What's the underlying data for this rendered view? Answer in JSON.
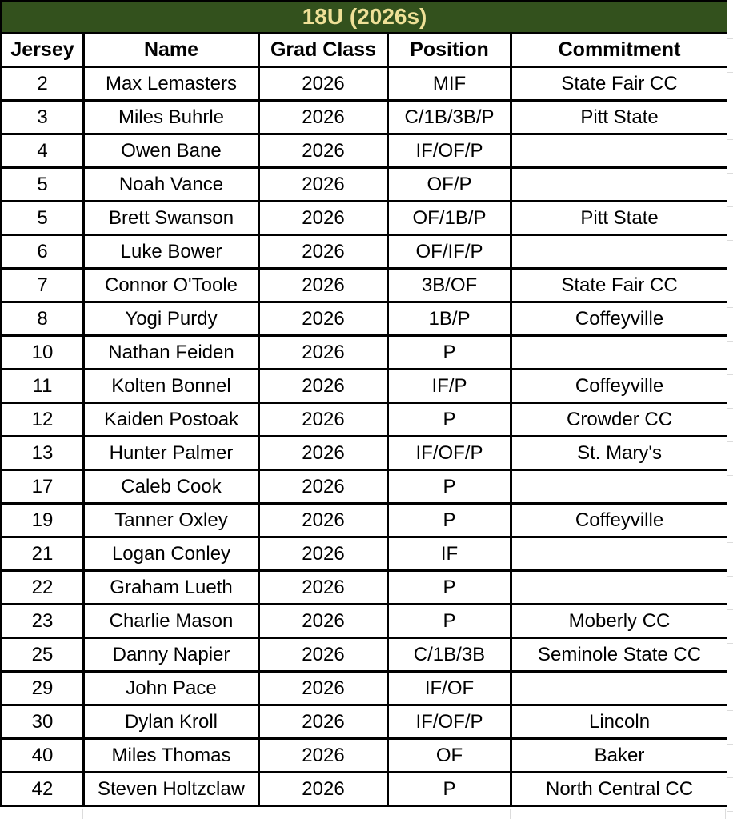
{
  "title": "18U (2026s)",
  "colors": {
    "header_bg": "#33511d",
    "header_text": "#efe097",
    "border": "#000000",
    "gridline": "#dcdcdc",
    "cell_bg": "#ffffff",
    "text": "#000000"
  },
  "table": {
    "columns": [
      "Jersey",
      "Name",
      "Grad Class",
      "Position",
      "Commitment"
    ],
    "rows": [
      {
        "jersey": "2",
        "name": "Max Lemasters",
        "grad_class": "2026",
        "position": "MIF",
        "commitment": "State Fair CC"
      },
      {
        "jersey": "3",
        "name": "Miles Buhrle",
        "grad_class": "2026",
        "position": "C/1B/3B/P",
        "commitment": "Pitt State"
      },
      {
        "jersey": "4",
        "name": "Owen Bane",
        "grad_class": "2026",
        "position": "IF/OF/P",
        "commitment": ""
      },
      {
        "jersey": "5",
        "name": "Noah Vance",
        "grad_class": "2026",
        "position": "OF/P",
        "commitment": ""
      },
      {
        "jersey": "5",
        "name": "Brett Swanson",
        "grad_class": "2026",
        "position": "OF/1B/P",
        "commitment": "Pitt State"
      },
      {
        "jersey": "6",
        "name": "Luke Bower",
        "grad_class": "2026",
        "position": "OF/IF/P",
        "commitment": ""
      },
      {
        "jersey": "7",
        "name": "Connor O'Toole",
        "grad_class": "2026",
        "position": "3B/OF",
        "commitment": "State Fair CC"
      },
      {
        "jersey": "8",
        "name": "Yogi Purdy",
        "grad_class": "2026",
        "position": "1B/P",
        "commitment": "Coffeyville"
      },
      {
        "jersey": "10",
        "name": "Nathan Feiden",
        "grad_class": "2026",
        "position": "P",
        "commitment": ""
      },
      {
        "jersey": "11",
        "name": "Kolten Bonnel",
        "grad_class": "2026",
        "position": "IF/P",
        "commitment": "Coffeyville"
      },
      {
        "jersey": "12",
        "name": "Kaiden Postoak",
        "grad_class": "2026",
        "position": "P",
        "commitment": "Crowder CC"
      },
      {
        "jersey": "13",
        "name": "Hunter Palmer",
        "grad_class": "2026",
        "position": "IF/OF/P",
        "commitment": "St. Mary's"
      },
      {
        "jersey": "17",
        "name": "Caleb Cook",
        "grad_class": "2026",
        "position": "P",
        "commitment": ""
      },
      {
        "jersey": "19",
        "name": "Tanner Oxley",
        "grad_class": "2026",
        "position": "P",
        "commitment": "Coffeyville"
      },
      {
        "jersey": "21",
        "name": "Logan Conley",
        "grad_class": "2026",
        "position": "IF",
        "commitment": ""
      },
      {
        "jersey": "22",
        "name": "Graham Lueth",
        "grad_class": "2026",
        "position": "P",
        "commitment": ""
      },
      {
        "jersey": "23",
        "name": "Charlie Mason",
        "grad_class": "2026",
        "position": "P",
        "commitment": "Moberly CC"
      },
      {
        "jersey": "25",
        "name": "Danny Napier",
        "grad_class": "2026",
        "position": "C/1B/3B",
        "commitment": "Seminole State CC"
      },
      {
        "jersey": "29",
        "name": "John Pace",
        "grad_class": "2026",
        "position": "IF/OF",
        "commitment": ""
      },
      {
        "jersey": "30",
        "name": "Dylan Kroll",
        "grad_class": "2026",
        "position": "IF/OF/P",
        "commitment": "Lincoln"
      },
      {
        "jersey": "40",
        "name": "Miles Thomas",
        "grad_class": "2026",
        "position": "OF",
        "commitment": "Baker"
      },
      {
        "jersey": "42",
        "name": "Steven Holtzclaw",
        "grad_class": "2026",
        "position": "P",
        "commitment": "North Central CC"
      }
    ]
  }
}
